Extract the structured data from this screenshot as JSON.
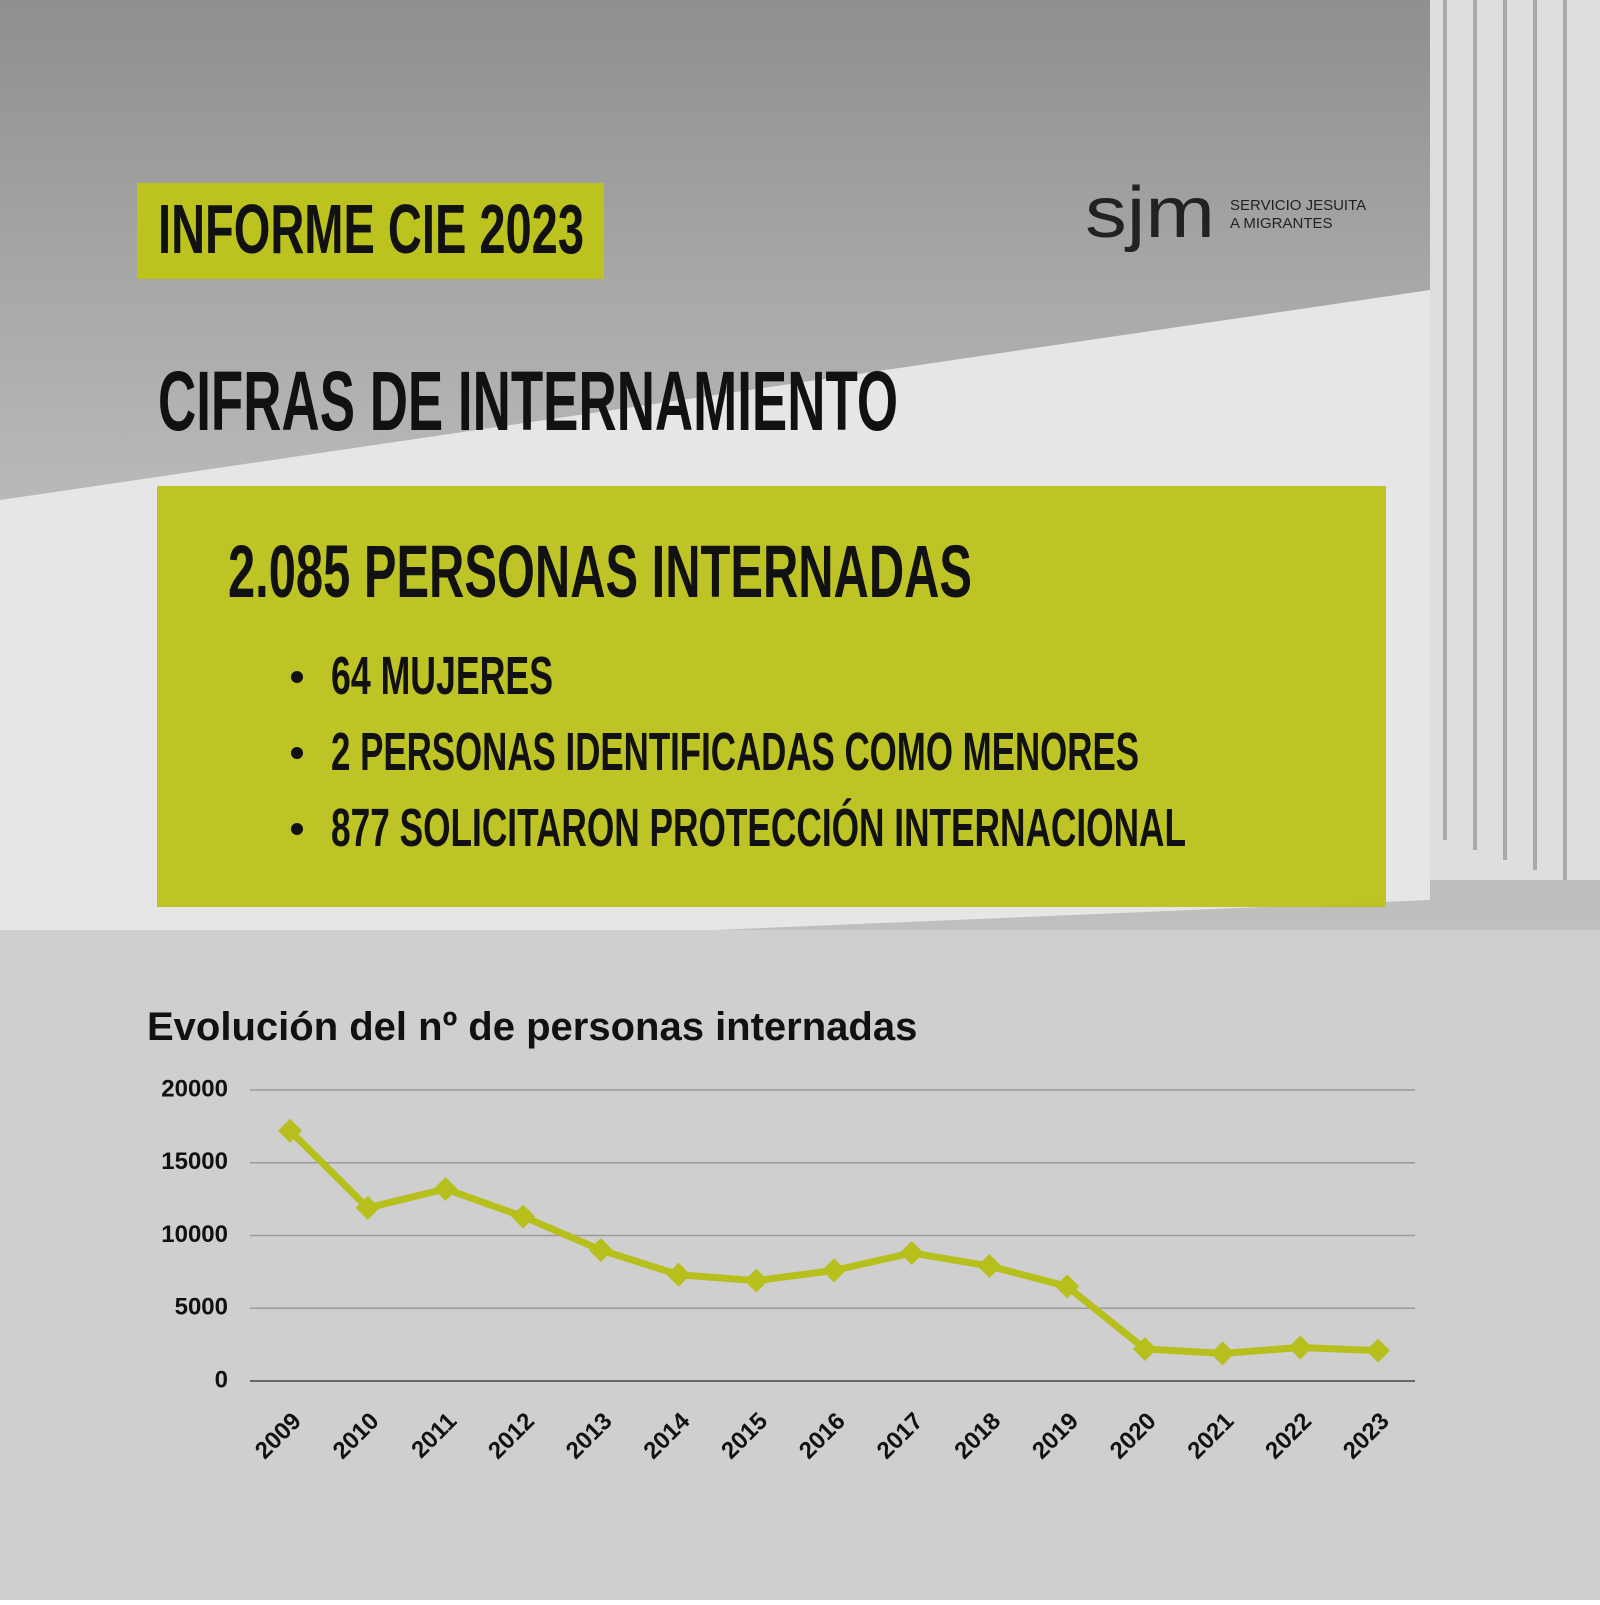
{
  "header": {
    "report_label": "INFORME CIE 2023",
    "logo": "sjm",
    "organization_lines": [
      "SERVICIO JESUITA",
      "A MIGRANTES"
    ]
  },
  "section_title": "CIFRAS DE INTERNAMIENTO",
  "highlight": {
    "headline": "2.085 PERSONAS INTERNADAS",
    "bullets": [
      "64 MUJERES",
      "2 PERSONAS IDENTIFICADAS COMO MENORES",
      "877 SOLICITARON PROTECCIÓN INTERNACIONAL"
    ]
  },
  "chart_data": {
    "type": "line",
    "title": "Evolución del nº de personas internadas",
    "categories": [
      "2009",
      "2010",
      "2011",
      "2012",
      "2013",
      "2014",
      "2015",
      "2016",
      "2017",
      "2018",
      "2019",
      "2020",
      "2021",
      "2022",
      "2023"
    ],
    "series": [
      {
        "name": "Personas internadas",
        "color": "#b7bf1d",
        "values": [
          17200,
          11900,
          13200,
          11300,
          9000,
          7300,
          6900,
          7600,
          8800,
          7900,
          6500,
          2200,
          1900,
          2300,
          2085
        ]
      }
    ],
    "ylim": [
      0,
      20000
    ],
    "yticks": [
      0,
      5000,
      10000,
      15000,
      20000
    ],
    "grid": true
  }
}
